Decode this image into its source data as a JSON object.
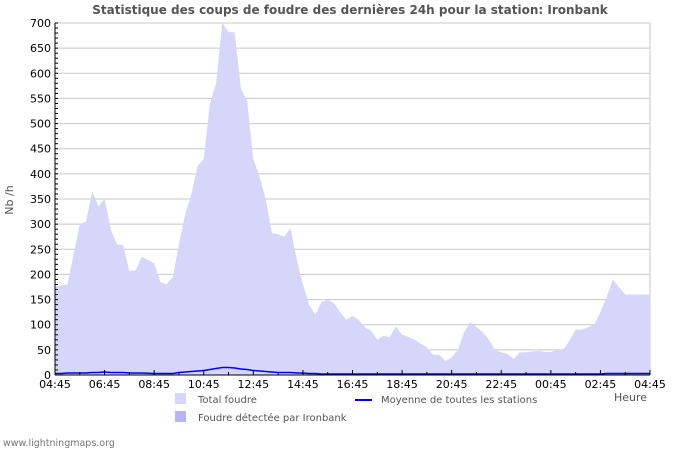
{
  "chart_data": {
    "type": "area",
    "title": "Statistique des coups de foudre des dernières 24h pour la station: Ironbank",
    "ylabel": "Nb /h",
    "xlabel": "Heure",
    "ylim": [
      0,
      700
    ],
    "yticks": [
      0,
      50,
      100,
      150,
      200,
      250,
      300,
      350,
      400,
      450,
      500,
      550,
      600,
      650,
      700
    ],
    "xticks": [
      "04:45",
      "06:45",
      "08:45",
      "10:45",
      "12:45",
      "14:45",
      "16:45",
      "18:45",
      "20:45",
      "22:45",
      "00:45",
      "02:45",
      "04:45"
    ],
    "x_hours_from_start": [
      0,
      0.25,
      0.5,
      1,
      1.25,
      1.5,
      1.75,
      2,
      2.25,
      2.5,
      2.75,
      3,
      3.25,
      3.5,
      4,
      4.25,
      4.5,
      4.75,
      5,
      5.25,
      5.5,
      5.75,
      6,
      6.25,
      6.5,
      6.75,
      7,
      7.25,
      7.5,
      7.75,
      8,
      8.25,
      8.5,
      8.75,
      9,
      9.25,
      9.5,
      9.75,
      10,
      10.25,
      10.5,
      10.75,
      11,
      11.25,
      11.5,
      11.75,
      12,
      12.25,
      12.5,
      12.75,
      13,
      13.25,
      13.5,
      13.75,
      14,
      14.25,
      14.5,
      14.75,
      15,
      15.25,
      15.5,
      15.75,
      16,
      16.25,
      16.5,
      16.75,
      17,
      17.25,
      17.5,
      17.75,
      18,
      18.25,
      18.5,
      18.75,
      19,
      19.25,
      19.5,
      19.75,
      20,
      20.25,
      20.5,
      20.75,
      21,
      21.25,
      21.5,
      21.75,
      22,
      22.25,
      22.5,
      22.75,
      23,
      23.5,
      24
    ],
    "series": [
      {
        "name": "Total foudre",
        "color": "#d6d6fb",
        "values": [
          175,
          178,
          180,
          300,
          305,
          365,
          335,
          350,
          290,
          260,
          258,
          207,
          208,
          235,
          222,
          185,
          180,
          195,
          260,
          320,
          360,
          415,
          430,
          540,
          580,
          700,
          682,
          682,
          570,
          545,
          430,
          395,
          350,
          282,
          280,
          275,
          292,
          230,
          180,
          140,
          120,
          145,
          150,
          143,
          125,
          110,
          118,
          110,
          95,
          88,
          70,
          78,
          75,
          97,
          80,
          76,
          70,
          62,
          55,
          40,
          40,
          28,
          35,
          50,
          85,
          105,
          95,
          85,
          70,
          50,
          45,
          42,
          32,
          45,
          45,
          47,
          48,
          46,
          46,
          50,
          50,
          68,
          90,
          90,
          95,
          100,
          125,
          155,
          190,
          175,
          160,
          160,
          160
        ]
      },
      {
        "name": "Moyenne de toutes les stations",
        "color": "#0000ff",
        "values": [
          3,
          3,
          4,
          4,
          4,
          5,
          5,
          6,
          5,
          5,
          5,
          4,
          4,
          4,
          3,
          3,
          3,
          3,
          5,
          6,
          7,
          8,
          9,
          11,
          13,
          15,
          15,
          14,
          12,
          11,
          9,
          8,
          7,
          6,
          5,
          5,
          5,
          4,
          4,
          3,
          3,
          2,
          2,
          2,
          2,
          2,
          2,
          2,
          2,
          2,
          2,
          2,
          2,
          2,
          2,
          2,
          2,
          2,
          2,
          2,
          2,
          2,
          2,
          2,
          2,
          2,
          2,
          2,
          2,
          2,
          2,
          2,
          2,
          2,
          2,
          2,
          2,
          2,
          2,
          2,
          2,
          2,
          2,
          2,
          2,
          2,
          2,
          3,
          3,
          3,
          3,
          3,
          3
        ]
      },
      {
        "name": "Foudre détectée par Ironbank",
        "color": "#b4b4f8",
        "values": []
      }
    ],
    "legend": "bottom"
  },
  "footer": "www.lightningmaps.org"
}
